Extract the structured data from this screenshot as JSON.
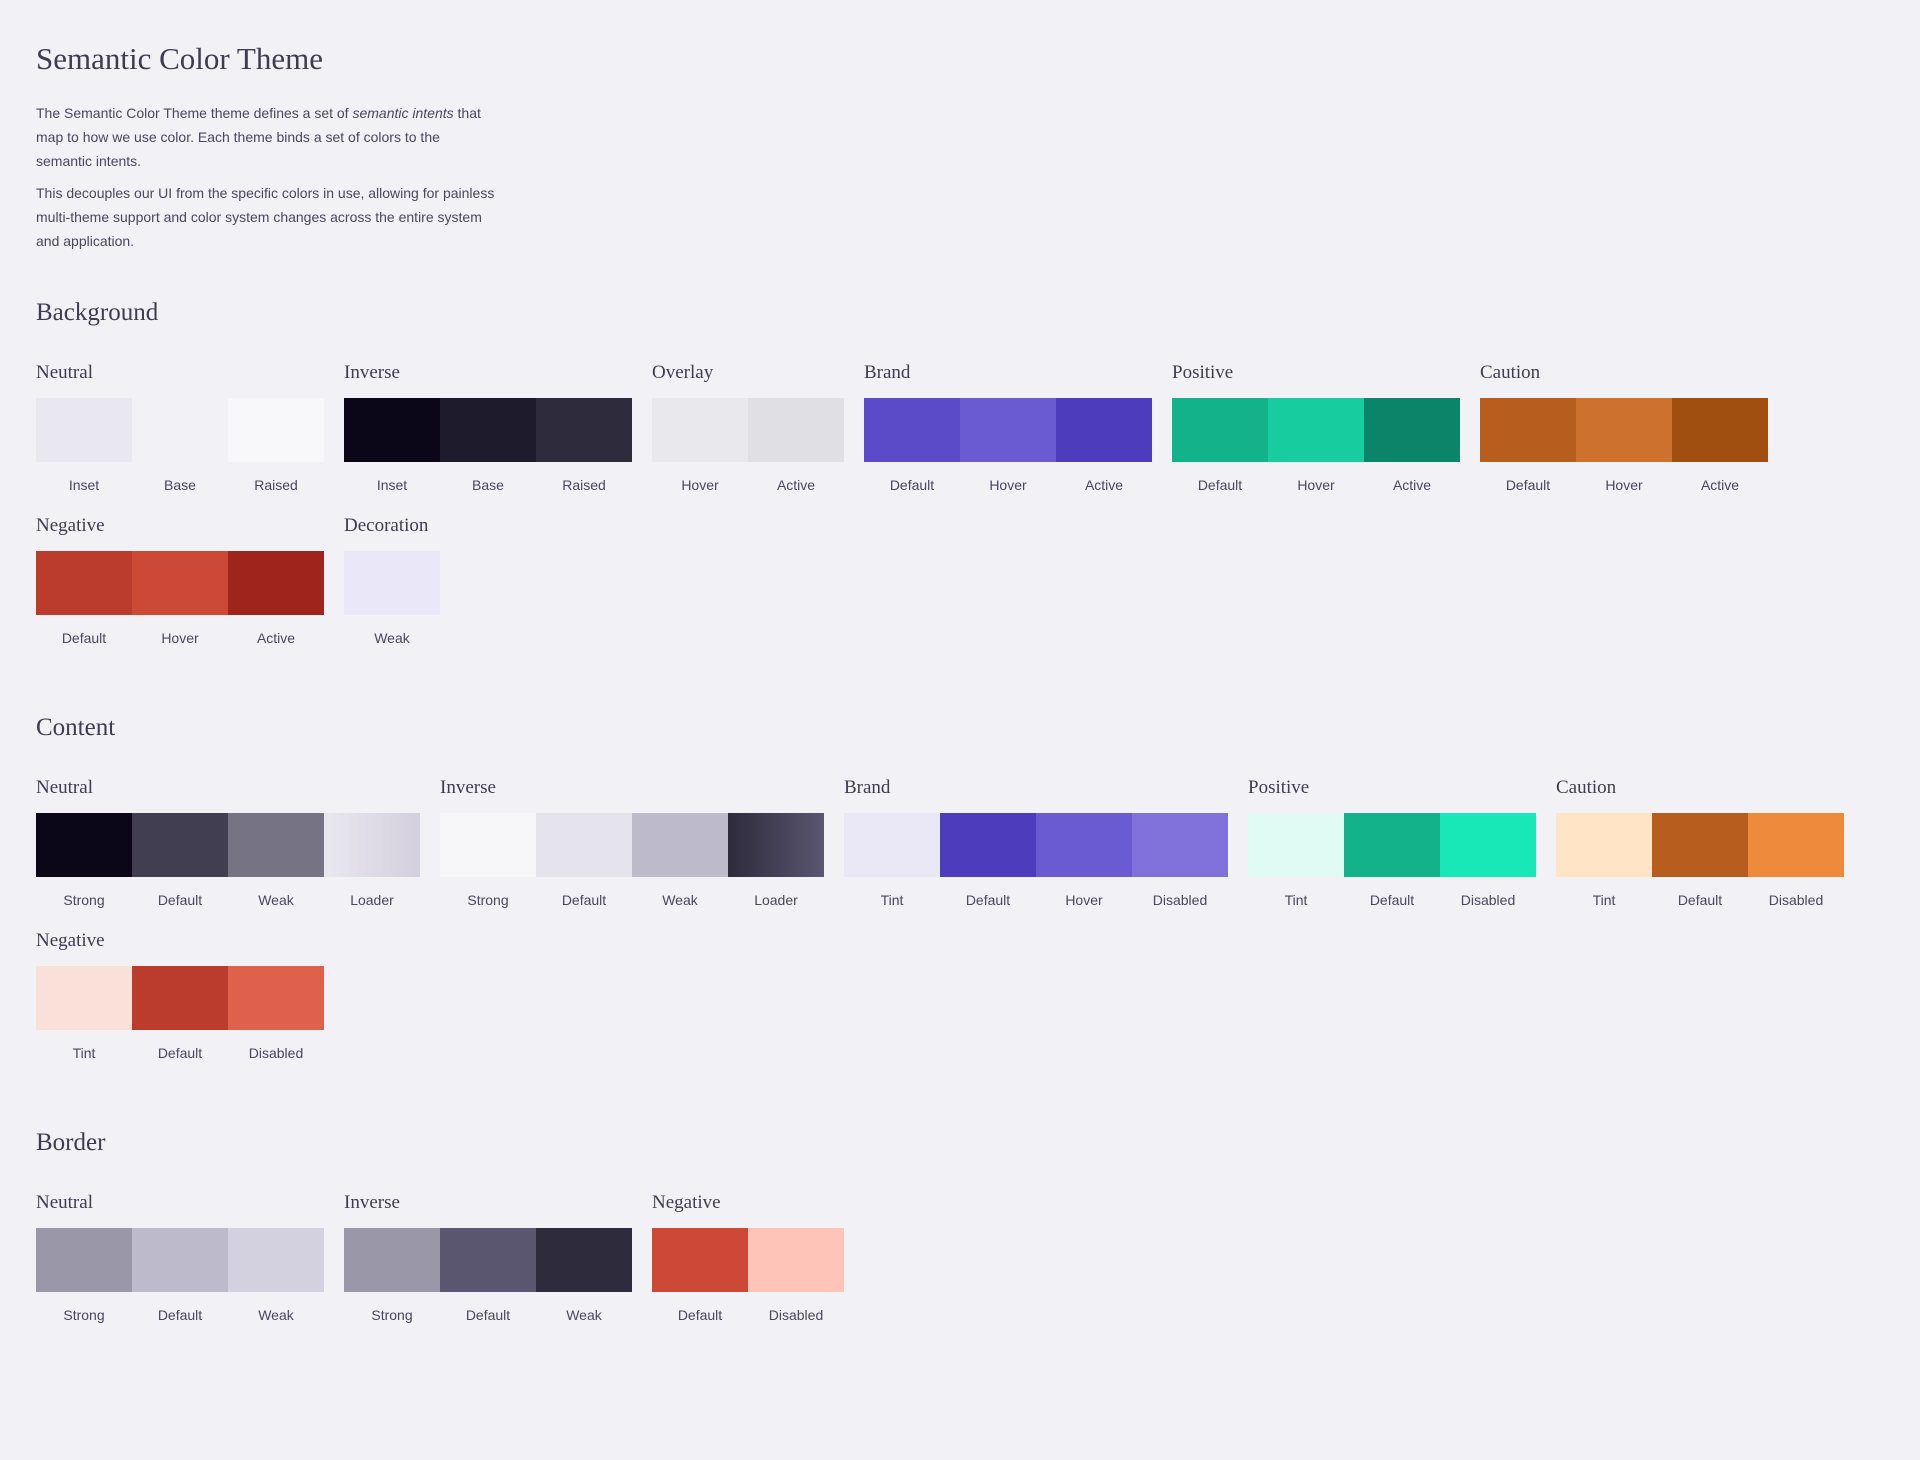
{
  "title": "Semantic Color Theme",
  "intro": {
    "p1_a": "The Semantic Color Theme theme defines a set of ",
    "p1_em": "semantic intents",
    "p1_b": " that map to how we use color. Each theme binds a set of colors to the semantic intents.",
    "p2": "This decouples our UI from the specific colors in use, allowing for painless multi-theme support and color system changes across the entire system and application."
  },
  "sections": [
    {
      "title": "Background",
      "groups": [
        {
          "title": "Neutral",
          "swatches": [
            {
              "label": "Inset",
              "color": "#e9e7ef"
            },
            {
              "label": "Base",
              "color": "#f2f1f6"
            },
            {
              "label": "Raised",
              "color": "#f8f7fa"
            }
          ]
        },
        {
          "title": "Inverse",
          "swatches": [
            {
              "label": "Inset",
              "color": "#0b0719"
            },
            {
              "label": "Base",
              "color": "#1e1b2d"
            },
            {
              "label": "Raised",
              "color": "#2e2b3d"
            }
          ]
        },
        {
          "title": "Overlay",
          "swatches": [
            {
              "label": "Hover",
              "color": "#e9e8ed"
            },
            {
              "label": "Active",
              "color": "#dfdfe4"
            }
          ]
        },
        {
          "title": "Brand",
          "swatches": [
            {
              "label": "Default",
              "color": "#5b4bc8"
            },
            {
              "label": "Hover",
              "color": "#6b5bd2"
            },
            {
              "label": "Active",
              "color": "#4d3cbb"
            }
          ]
        },
        {
          "title": "Positive",
          "swatches": [
            {
              "label": "Default",
              "color": "#12b38a"
            },
            {
              "label": "Hover",
              "color": "#17cc9e"
            },
            {
              "label": "Active",
              "color": "#0a856a"
            }
          ]
        },
        {
          "title": "Caution",
          "swatches": [
            {
              "label": "Default",
              "color": "#b75e1e"
            },
            {
              "label": "Hover",
              "color": "#cc712e"
            },
            {
              "label": "Active",
              "color": "#a04f11"
            }
          ]
        },
        {
          "title": "Negative",
          "swatches": [
            {
              "label": "Default",
              "color": "#bb3b2d"
            },
            {
              "label": "Hover",
              "color": "#cc4936"
            },
            {
              "label": "Active",
              "color": "#9f241b"
            }
          ]
        },
        {
          "title": "Decoration",
          "swatches": [
            {
              "label": "Weak",
              "color": "#eae7f8"
            }
          ]
        }
      ]
    },
    {
      "title": "Content",
      "groups": [
        {
          "title": "Neutral",
          "swatches": [
            {
              "label": "Strong",
              "color": "#0b0719"
            },
            {
              "label": "Default",
              "color": "#423e52"
            },
            {
              "label": "Weak",
              "color": "#767385"
            },
            {
              "label": "Loader",
              "color": "linear-gradient(to right, #e9e7ef, #d3d0dd)"
            }
          ]
        },
        {
          "title": "Inverse",
          "swatches": [
            {
              "label": "Strong",
              "color": "#f7f6f9"
            },
            {
              "label": "Default",
              "color": "#e5e3ec"
            },
            {
              "label": "Weak",
              "color": "#bdbacb"
            },
            {
              "label": "Loader",
              "color": "linear-gradient(to right, #2e2b3d, #5a5670)"
            }
          ]
        },
        {
          "title": "Brand",
          "swatches": [
            {
              "label": "Tint",
              "color": "#eae8f7"
            },
            {
              "label": "Default",
              "color": "#4d3cbb"
            },
            {
              "label": "Hover",
              "color": "#6b5bd2"
            },
            {
              "label": "Disabled",
              "color": "#8071db"
            }
          ]
        },
        {
          "title": "Positive",
          "swatches": [
            {
              "label": "Tint",
              "color": "#e0fbf4"
            },
            {
              "label": "Default",
              "color": "#12b38a"
            },
            {
              "label": "Disabled",
              "color": "#18e8b8"
            }
          ]
        },
        {
          "title": "Caution",
          "swatches": [
            {
              "label": "Tint",
              "color": "#ffe4c6"
            },
            {
              "label": "Default",
              "color": "#b75e1e"
            },
            {
              "label": "Disabled",
              "color": "#ee8a3c"
            }
          ]
        },
        {
          "title": "Negative",
          "swatches": [
            {
              "label": "Tint",
              "color": "#f9e1da"
            },
            {
              "label": "Default",
              "color": "#bb3b2d"
            },
            {
              "label": "Disabled",
              "color": "#df604b"
            }
          ]
        }
      ]
    },
    {
      "title": "Border",
      "groups": [
        {
          "title": "Neutral",
          "swatches": [
            {
              "label": "Strong",
              "color": "#9a97a8"
            },
            {
              "label": "Default",
              "color": "#bdbacb"
            },
            {
              "label": "Weak",
              "color": "#d3d1df"
            }
          ]
        },
        {
          "title": "Inverse",
          "swatches": [
            {
              "label": "Strong",
              "color": "#9a97a8"
            },
            {
              "label": "Default",
              "color": "#5a5670"
            },
            {
              "label": "Weak",
              "color": "#2e2b3d"
            }
          ]
        },
        {
          "title": "Negative",
          "swatches": [
            {
              "label": "Default",
              "color": "#cc4936"
            },
            {
              "label": "Disabled",
              "color": "#ffc4b8"
            }
          ]
        }
      ]
    }
  ]
}
